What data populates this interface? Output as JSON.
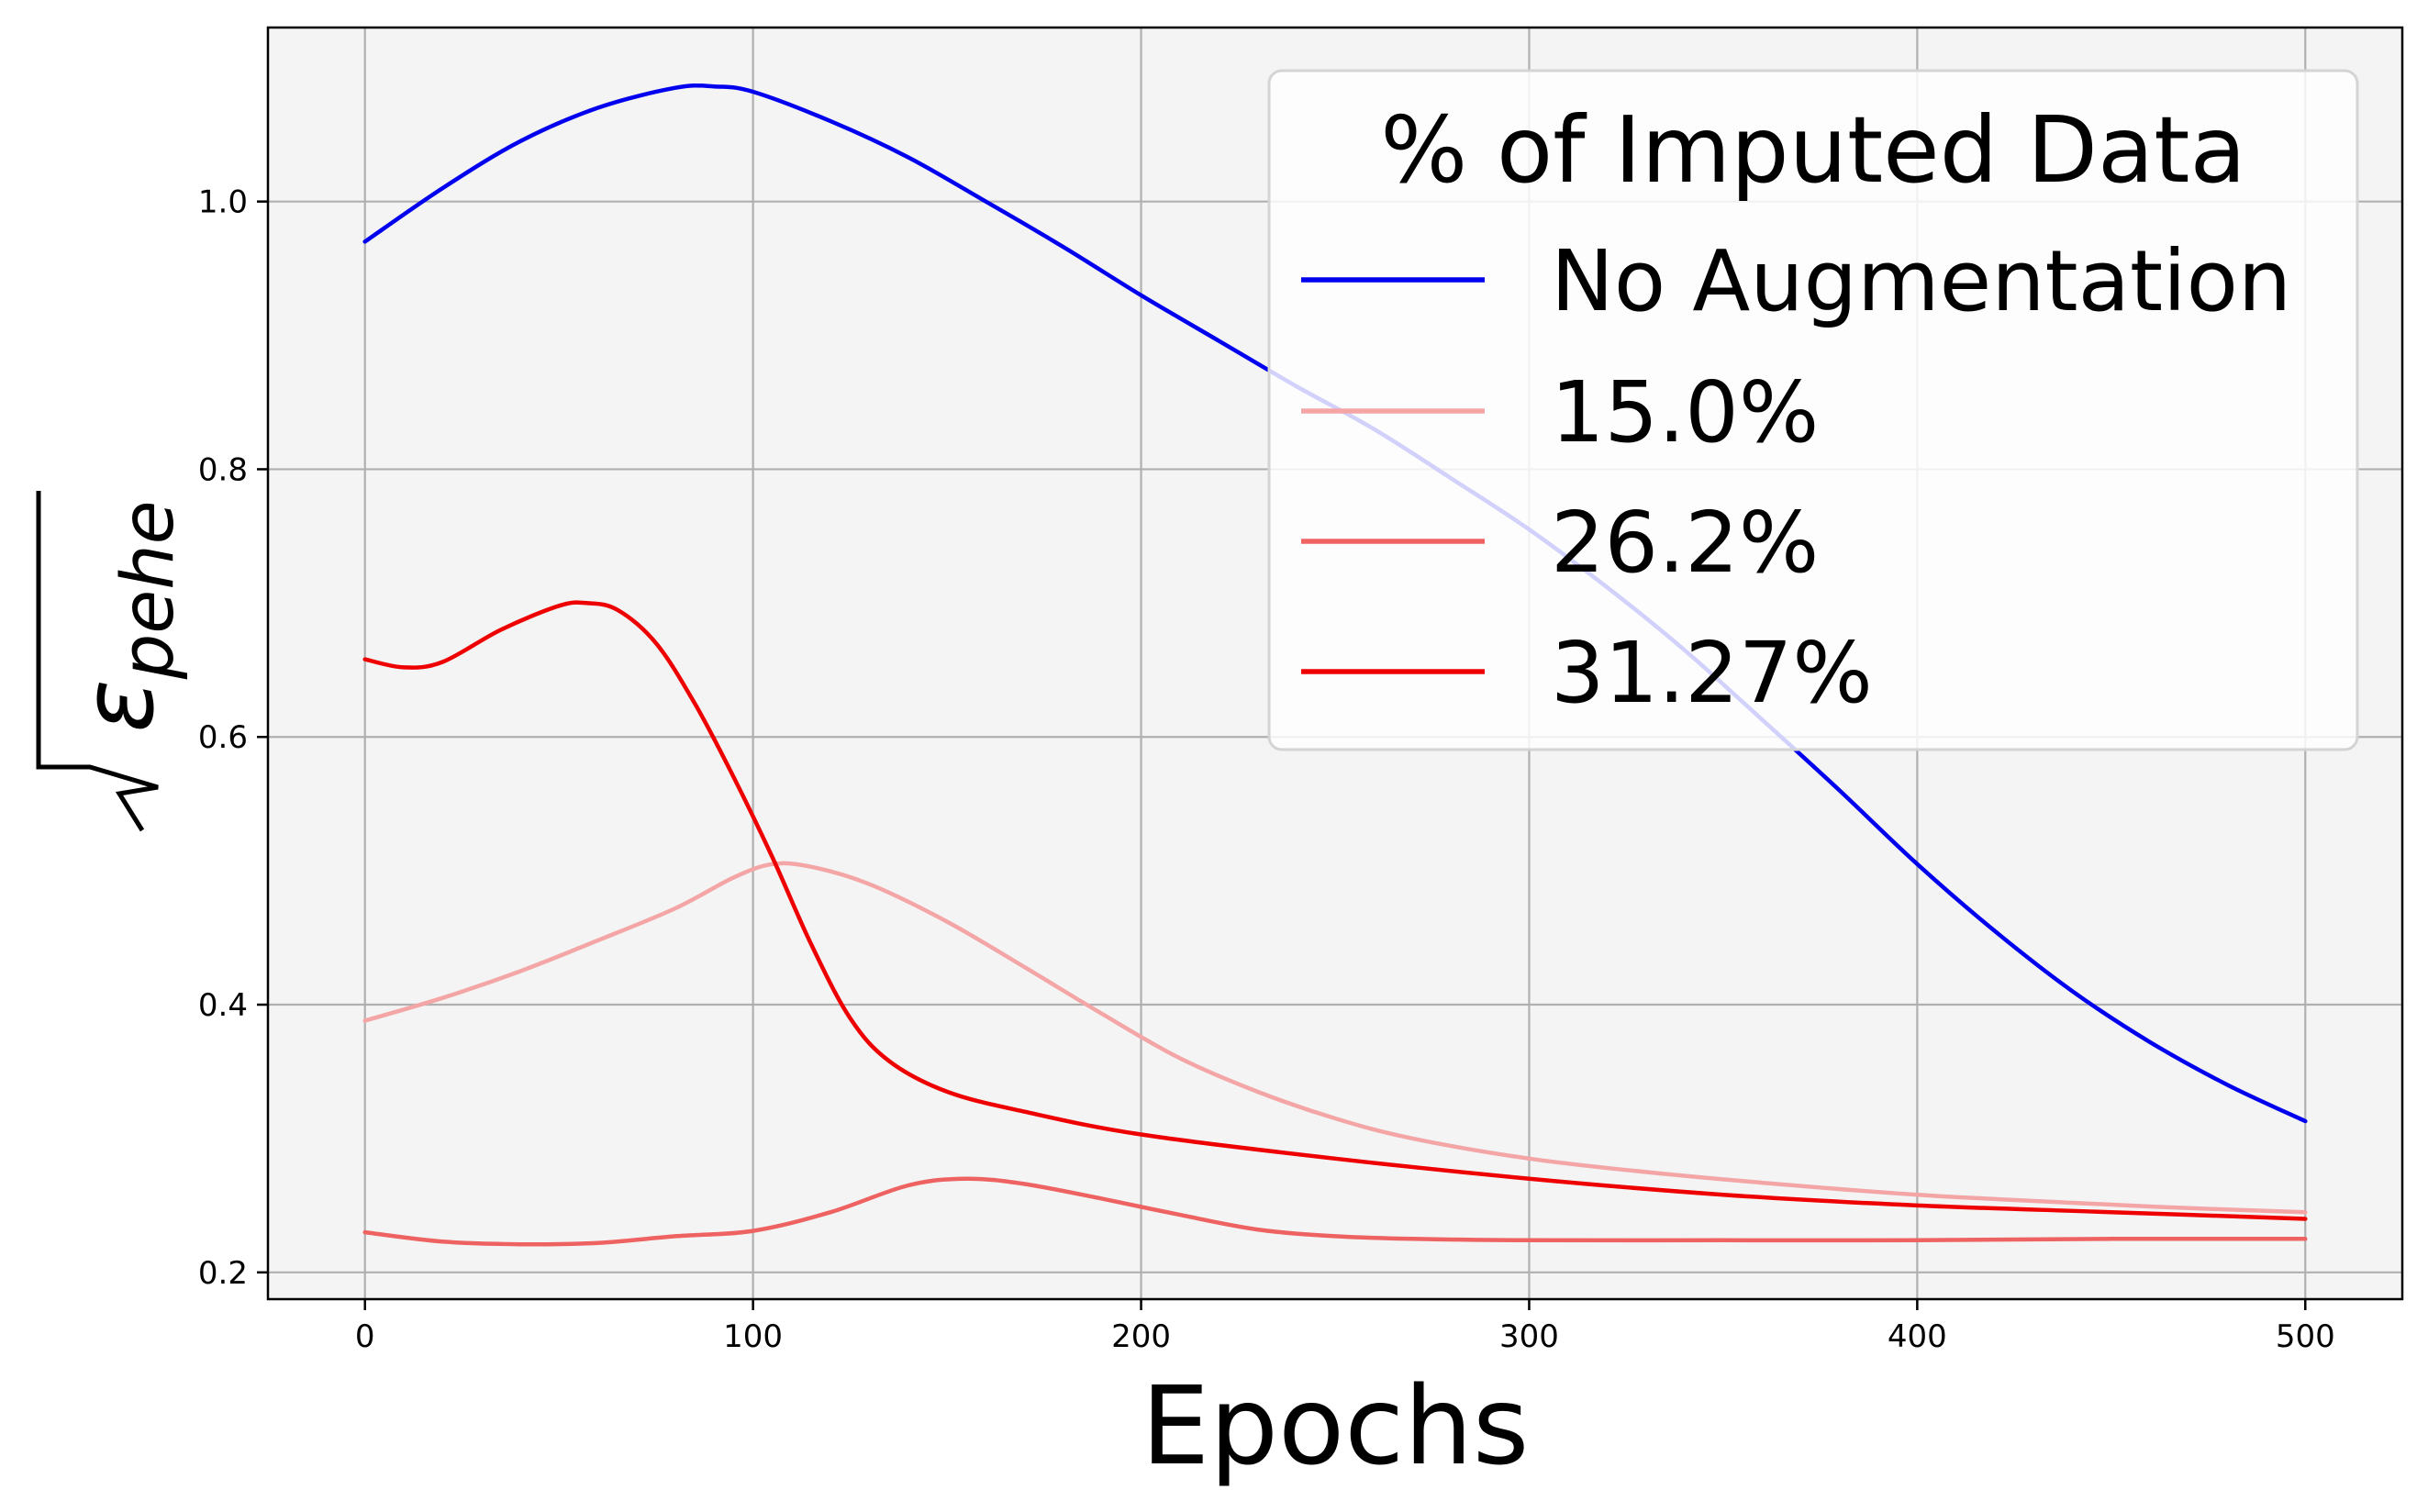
{
  "chart_data": {
    "type": "line",
    "title": "",
    "xlabel": "Epochs",
    "ylabel_symbol": "ε",
    "ylabel_subscript": "pehe",
    "xlim": [
      -25,
      525
    ],
    "ylim": [
      0.18,
      1.13
    ],
    "xticks": [
      0,
      100,
      200,
      300,
      400,
      500
    ],
    "yticks": [
      0.2,
      0.4,
      0.6,
      0.8,
      1.0
    ],
    "xtick_labels": [
      "0",
      "100",
      "200",
      "300",
      "400",
      "500"
    ],
    "ytick_labels": [
      "0.2",
      "0.4",
      "0.6",
      "0.8",
      "1.0"
    ],
    "grid": true,
    "legend": {
      "title": "% of Imputed Data",
      "placement": "top-right"
    },
    "series": [
      {
        "name": "No Augmentation",
        "color": "#0000ee",
        "x": [
          0,
          20,
          40,
          60,
          80,
          90,
          100,
          120,
          140,
          160,
          180,
          200,
          220,
          240,
          260,
          280,
          300,
          320,
          340,
          360,
          380,
          400,
          420,
          440,
          460,
          480,
          500
        ],
        "y": [
          0.97,
          1.01,
          1.045,
          1.07,
          1.085,
          1.086,
          1.082,
          1.06,
          1.033,
          1.0,
          0.966,
          0.93,
          0.896,
          0.862,
          0.83,
          0.793,
          0.755,
          0.712,
          0.665,
          0.613,
          0.56,
          0.505,
          0.455,
          0.41,
          0.372,
          0.34,
          0.313
        ]
      },
      {
        "name": "15.0%",
        "color": "#f4a6a6",
        "x": [
          0,
          20,
          40,
          60,
          80,
          95,
          105,
          115,
          130,
          150,
          170,
          190,
          210,
          230,
          250,
          270,
          300,
          330,
          360,
          400,
          440,
          470,
          500
        ],
        "y": [
          0.388,
          0.405,
          0.425,
          0.448,
          0.472,
          0.495,
          0.505,
          0.503,
          0.49,
          0.462,
          0.428,
          0.393,
          0.36,
          0.335,
          0.315,
          0.3,
          0.285,
          0.275,
          0.267,
          0.258,
          0.252,
          0.248,
          0.245
        ]
      },
      {
        "name": "26.2%",
        "color": "#ee6262",
        "x": [
          0,
          20,
          40,
          60,
          80,
          100,
          120,
          140,
          155,
          170,
          190,
          210,
          230,
          250,
          270,
          300,
          350,
          400,
          450,
          500
        ],
        "y": [
          0.23,
          0.223,
          0.221,
          0.222,
          0.227,
          0.231,
          0.245,
          0.265,
          0.27,
          0.266,
          0.255,
          0.243,
          0.232,
          0.227,
          0.225,
          0.224,
          0.224,
          0.224,
          0.225,
          0.225
        ]
      },
      {
        "name": "31.27%",
        "color": "#ee0000",
        "x": [
          0,
          10,
          20,
          35,
          50,
          57,
          65,
          75,
          85,
          95,
          105,
          115,
          125,
          135,
          150,
          170,
          200,
          250,
          300,
          350,
          400,
          450,
          500
        ],
        "y": [
          0.658,
          0.652,
          0.656,
          0.68,
          0.698,
          0.7,
          0.695,
          0.67,
          0.625,
          0.57,
          0.51,
          0.445,
          0.39,
          0.358,
          0.335,
          0.32,
          0.303,
          0.285,
          0.27,
          0.258,
          0.25,
          0.245,
          0.24
        ]
      }
    ]
  }
}
